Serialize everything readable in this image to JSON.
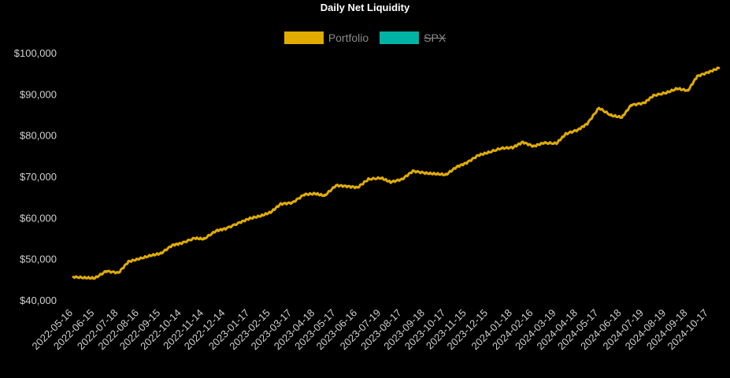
{
  "chart_data": {
    "type": "line",
    "title": "Daily Net Liquidity",
    "xlabel": "",
    "ylabel": "",
    "ylim": [
      40000,
      100000
    ],
    "y_ticks": [
      "$40,000",
      "$50,000",
      "$60,000",
      "$70,000",
      "$80,000",
      "$90,000",
      "$100,000"
    ],
    "x_ticks": [
      "2022-05-16",
      "2022-06-15",
      "2022-07-18",
      "2022-08-16",
      "2022-09-15",
      "2022-10-14",
      "2022-11-14",
      "2022-12-14",
      "2023-01-17",
      "2023-02-15",
      "2023-03-17",
      "2023-04-18",
      "2023-05-17",
      "2023-06-16",
      "2023-07-19",
      "2023-08-17",
      "2023-09-18",
      "2023-10-17",
      "2023-11-15",
      "2023-12-15",
      "2024-01-18",
      "2024-02-16",
      "2024-03-19",
      "2024-04-18",
      "2024-05-17",
      "2024-06-18",
      "2024-07-19",
      "2024-08-19",
      "2024-09-18",
      "2024-10-17"
    ],
    "grid": false,
    "legend_position": "top-center",
    "series": [
      {
        "name": "Portfolio",
        "color": "#e0ac00",
        "visible": true,
        "x": [
          "2022-05-16",
          "2022-06-01",
          "2022-06-15",
          "2022-07-01",
          "2022-07-18",
          "2022-08-01",
          "2022-08-16",
          "2022-09-01",
          "2022-09-15",
          "2022-10-01",
          "2022-10-14",
          "2022-11-01",
          "2022-11-14",
          "2022-12-01",
          "2022-12-14",
          "2023-01-03",
          "2023-01-17",
          "2023-02-01",
          "2023-02-15",
          "2023-03-01",
          "2023-03-17",
          "2023-04-03",
          "2023-04-18",
          "2023-05-01",
          "2023-05-17",
          "2023-06-01",
          "2023-06-16",
          "2023-07-01",
          "2023-07-19",
          "2023-08-01",
          "2023-08-17",
          "2023-09-01",
          "2023-09-18",
          "2023-10-02",
          "2023-10-17",
          "2023-11-01",
          "2023-11-15",
          "2023-12-01",
          "2023-12-15",
          "2024-01-02",
          "2024-01-18",
          "2024-02-01",
          "2024-02-16",
          "2024-03-01",
          "2024-03-19",
          "2024-04-01",
          "2024-04-18",
          "2024-05-01",
          "2024-05-17",
          "2024-06-03",
          "2024-06-18",
          "2024-07-01",
          "2024-07-19",
          "2024-08-01",
          "2024-08-19",
          "2024-09-03",
          "2024-09-18",
          "2024-10-01",
          "2024-10-17",
          "2024-10-31"
        ],
        "values": [
          45800,
          45600,
          45500,
          47200,
          46800,
          49500,
          50200,
          51000,
          51500,
          53500,
          54000,
          55200,
          55000,
          57000,
          57500,
          59000,
          60000,
          60600,
          61500,
          63500,
          63800,
          65800,
          66000,
          65500,
          68000,
          67800,
          67500,
          69500,
          69800,
          68800,
          69500,
          71500,
          71000,
          70800,
          70600,
          72500,
          73500,
          75300,
          76000,
          77000,
          77200,
          78500,
          77500,
          78300,
          78200,
          80500,
          81500,
          83000,
          86800,
          85000,
          84500,
          87500,
          88000,
          89800,
          90500,
          91500,
          91000,
          94500,
          95500,
          96500
        ]
      },
      {
        "name": "SPX",
        "color": "#00b3a4",
        "visible": false,
        "values": []
      }
    ]
  }
}
